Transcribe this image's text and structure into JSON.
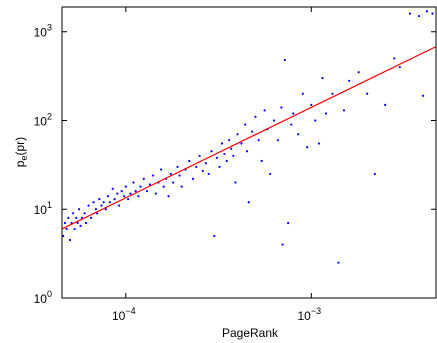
{
  "chart_data": {
    "type": "scatter",
    "xlabel": "PageRank",
    "ylabel": {
      "base": "p",
      "sub": "e",
      "rest": "(pr)"
    },
    "log_x": true,
    "log_y": true,
    "xlim": [
      4.53e-05,
      0.0047
    ],
    "ylim": [
      1,
      1900
    ],
    "xticks": [
      {
        "value": 0.0001,
        "label": "10",
        "exponent": "−4"
      },
      {
        "value": 0.001,
        "label": "10",
        "exponent": "−3"
      }
    ],
    "yticks": [
      {
        "value": 1,
        "label": "10",
        "exponent": "0"
      },
      {
        "value": 10,
        "label": "10",
        "exponent": "1"
      },
      {
        "value": 100,
        "label": "10",
        "exponent": "2"
      },
      {
        "value": 1000,
        "label": "10",
        "exponent": "3"
      }
    ],
    "color": "#0000ff",
    "x": [
      4.6e-05,
      4.7e-05,
      4.8e-05,
      4.9e-05,
      5e-05,
      5.1e-05,
      5.2e-05,
      5.3e-05,
      5.4e-05,
      5.5e-05,
      5.6e-05,
      5.7e-05,
      5.8e-05,
      6e-05,
      6.1e-05,
      6.3e-05,
      6.5e-05,
      6.7e-05,
      6.9e-05,
      7e-05,
      7.2e-05,
      7.4e-05,
      7.6e-05,
      7.8e-05,
      8e-05,
      8.2e-05,
      8.5e-05,
      8.7e-05,
      9e-05,
      9.2e-05,
      9.5e-05,
      9.8e-05,
      0.0001,
      0.000103,
      0.000106,
      0.00011,
      0.000113,
      0.000117,
      0.00012,
      0.000125,
      0.00013,
      0.000135,
      0.00014,
      0.000145,
      0.00015,
      0.000155,
      0.00016,
      0.000165,
      0.00017,
      0.000175,
      0.00018,
      0.00019,
      0.000195,
      0.0002,
      0.00021,
      0.00022,
      0.00023,
      0.00024,
      0.00025,
      0.00026,
      0.00027,
      0.00028,
      0.00029,
      0.0003,
      0.00031,
      0.00032,
      0.00033,
      0.00034,
      0.00035,
      0.00036,
      0.00037,
      0.00038,
      0.00039,
      0.0004,
      0.00042,
      0.00044,
      0.00045,
      0.00046,
      0.00048,
      0.0005,
      0.00052,
      0.00054,
      0.00056,
      0.00058,
      0.0006,
      0.00063,
      0.00066,
      0.00069,
      0.0007,
      0.00072,
      0.00075,
      0.00078,
      0.0008,
      0.00085,
      0.0009,
      0.00095,
      0.001,
      0.00105,
      0.0011,
      0.00115,
      0.0012,
      0.0013,
      0.0014,
      0.0015,
      0.0016,
      0.0018,
      0.002,
      0.0022,
      0.0025,
      0.0028,
      0.003,
      0.0034,
      0.0038,
      0.004,
      0.0042,
      0.0045
    ],
    "values": [
      5,
      7,
      6,
      8,
      4.5,
      7,
      9,
      6,
      8,
      7,
      10,
      6.5,
      8,
      9,
      7,
      11,
      8,
      12,
      10,
      9,
      13,
      11,
      12,
      10,
      14,
      12,
      17,
      13,
      15,
      11,
      16,
      14,
      18,
      13,
      15,
      20,
      16,
      14,
      18,
      22,
      16,
      19,
      24,
      15,
      20,
      28,
      18,
      22,
      14,
      25,
      20,
      30,
      24,
      18,
      28,
      35,
      22,
      30,
      40,
      27,
      33,
      25,
      45,
      5,
      38,
      30,
      55,
      42,
      35,
      60,
      48,
      40,
      20,
      70,
      55,
      90,
      45,
      12,
      75,
      110,
      60,
      35,
      130,
      80,
      25,
      100,
      60,
      140,
      4,
      480,
      7,
      90,
      120,
      70,
      200,
      50,
      150,
      100,
      55,
      300,
      120,
      200,
      2.5,
      130,
      280,
      350,
      200,
      25,
      150,
      500,
      400,
      1600,
      1500,
      190,
      1700,
      1600
    ],
    "fit_line": {
      "color": "#ff0000",
      "x": [
        4.53e-05,
        0.0047
      ],
      "values": [
        6,
        680
      ]
    }
  }
}
